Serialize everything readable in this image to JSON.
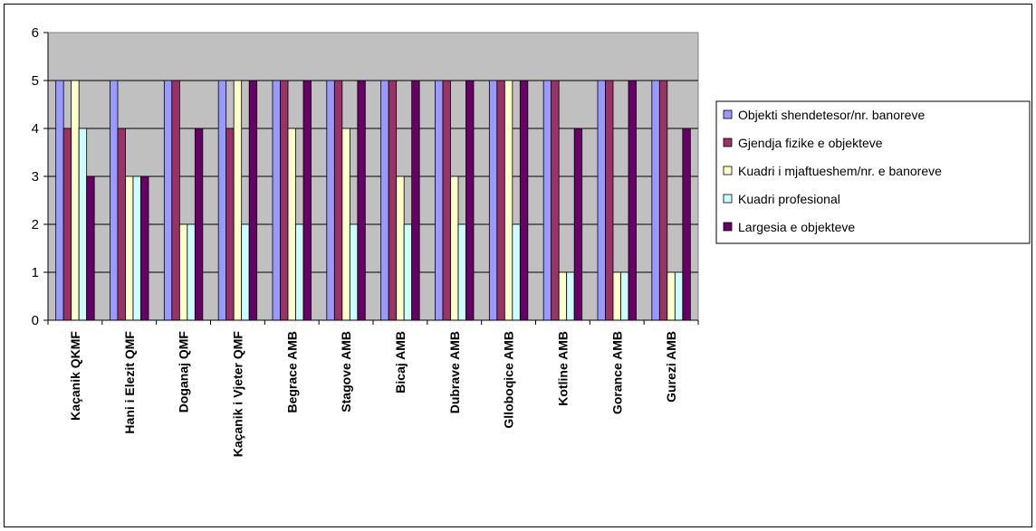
{
  "chart_data": {
    "type": "bar",
    "title": "",
    "xlabel": "",
    "ylabel": "",
    "ylim": [
      0,
      6
    ],
    "yticks": [
      "0",
      "1",
      "2",
      "3",
      "4",
      "5",
      "6"
    ],
    "grid": true,
    "legend_position": "right",
    "plot_background": "#c0c0c0",
    "categories": [
      "Kaçanik QKMF",
      "Hani i Elezit QMF",
      "Doganaj QMF",
      "Kaçanik i Vjeter QMF",
      "Begrace AMB",
      "Stagove AMB",
      "Bicaj AMB",
      "Dubrave AMB",
      "Glloboqice AMB",
      "Kotline AMB",
      "Gorance AMB",
      "Gurezi AMB"
    ],
    "series": [
      {
        "name": "Objekti shendetesor/nr. banoreve",
        "color": "#9999ff",
        "values": [
          5,
          5,
          5,
          5,
          5,
          5,
          5,
          5,
          5,
          5,
          5,
          5
        ]
      },
      {
        "name": "Gjendja fizike e objekteve",
        "color": "#993366",
        "values": [
          4,
          4,
          5,
          4,
          5,
          5,
          5,
          5,
          5,
          5,
          5,
          5
        ]
      },
      {
        "name": "Kuadri i mjaftueshem/nr. e banoreve",
        "color": "#ffffcc",
        "values": [
          5,
          3,
          2,
          5,
          4,
          4,
          3,
          3,
          5,
          1,
          1,
          1
        ]
      },
      {
        "name": "Kuadri profesional",
        "color": "#ccffff",
        "values": [
          4,
          3,
          2,
          2,
          2,
          2,
          2,
          2,
          2,
          1,
          1,
          1
        ]
      },
      {
        "name": "Largesia e objekteve",
        "color": "#660066",
        "values": [
          3,
          3,
          4,
          5,
          5,
          5,
          5,
          5,
          5,
          4,
          5,
          4
        ]
      }
    ]
  }
}
